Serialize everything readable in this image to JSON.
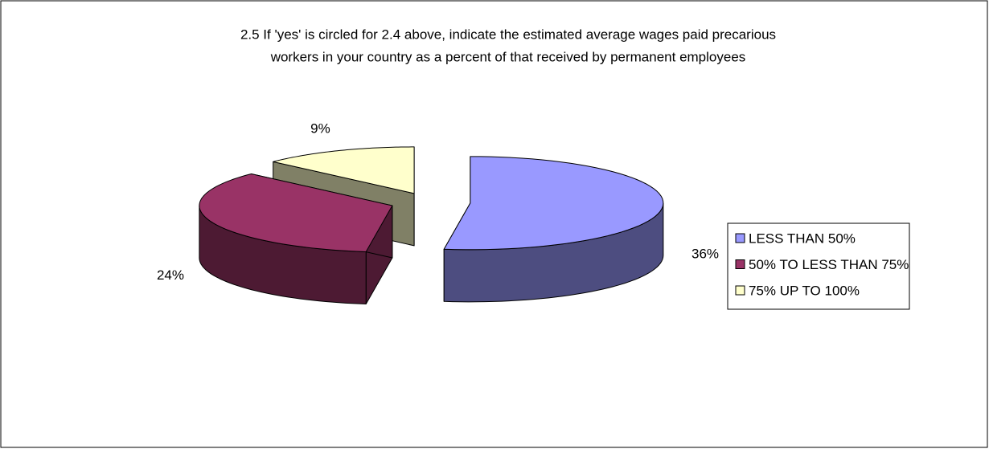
{
  "chart_data": {
    "type": "pie3d",
    "title": [
      "2.5 If 'yes' is circled for 2.4 above, indicate the estimated average wages paid precarious",
      "workers in your country as a percent of that received by permanent employees"
    ],
    "categories": [
      "LESS THAN 50%",
      "50% TO LESS THAN 75%",
      "75% UP TO 100%"
    ],
    "values": [
      36,
      24,
      9
    ],
    "value_labels": [
      "36%",
      "24%",
      "9%"
    ],
    "colors": [
      "#9999ff",
      "#993366",
      "#ffffcc"
    ],
    "legend": "right"
  }
}
